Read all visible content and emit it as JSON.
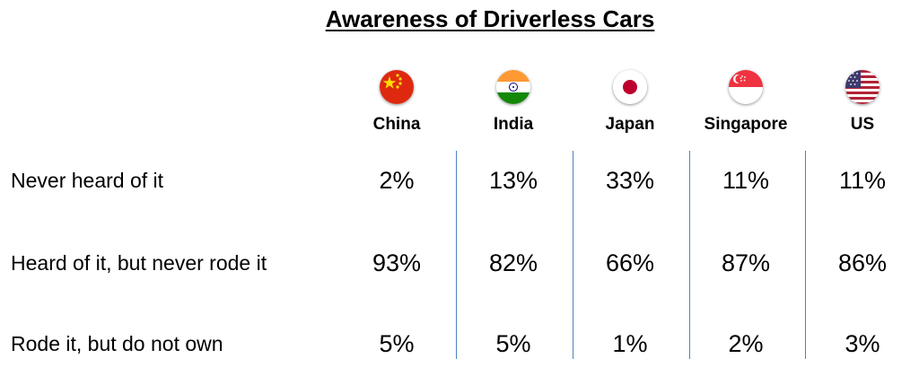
{
  "title": "Awareness of Driverless Cars",
  "chart_data": {
    "type": "table",
    "title": "Awareness of Driverless Cars",
    "columns": [
      {
        "label": "China",
        "flag": "china-flag-icon",
        "values": [
          "2%",
          "93%",
          "5%"
        ]
      },
      {
        "label": "India",
        "flag": "india-flag-icon",
        "values": [
          "13%",
          "82%",
          "5%"
        ]
      },
      {
        "label": "Japan",
        "flag": "japan-flag-icon",
        "values": [
          "33%",
          "66%",
          "1%"
        ]
      },
      {
        "label": "Singapore",
        "flag": "singapore-flag-icon",
        "values": [
          "11%",
          "87%",
          "2%"
        ]
      },
      {
        "label": "US",
        "flag": "us-flag-icon",
        "values": [
          "11%",
          "86%",
          "3%"
        ]
      }
    ],
    "rows": [
      "Never heard of it",
      "Heard of it, but never rode it",
      "Rode it, but do not own"
    ],
    "colors": {
      "divider": "#4f81bd"
    }
  }
}
